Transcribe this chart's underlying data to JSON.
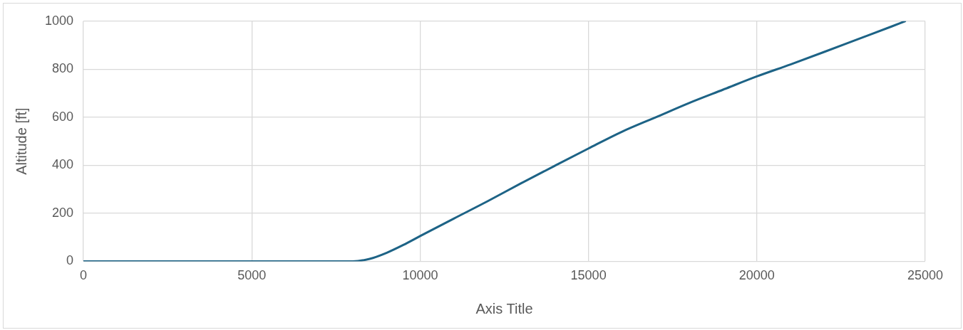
{
  "chart_data": {
    "type": "line",
    "xlabel": "Axis Title",
    "ylabel": "Altitude [ft]",
    "series": [
      {
        "color": "#1d6386",
        "x": [
          0,
          2000,
          4000,
          6000,
          8000,
          8500,
          9000,
          9500,
          10000,
          11000,
          12000,
          13000,
          14000,
          15000,
          16000,
          17000,
          18000,
          19000,
          20000,
          21000,
          22000,
          23000,
          24000,
          24400
        ],
        "values": [
          0,
          0,
          0,
          0,
          0,
          10,
          35,
          68,
          105,
          178,
          250,
          325,
          398,
          470,
          540,
          600,
          660,
          715,
          770,
          820,
          872,
          925,
          978,
          1000
        ]
      }
    ],
    "xlim": [
      0,
      25000
    ],
    "xticks": [
      0,
      5000,
      10000,
      15000,
      20000,
      25000
    ],
    "ylim": [
      0,
      1000
    ],
    "yticks": [
      0,
      200,
      400,
      600,
      800,
      1000
    ],
    "grid": true,
    "legend": false,
    "marker": "none",
    "line_style": "solid"
  }
}
